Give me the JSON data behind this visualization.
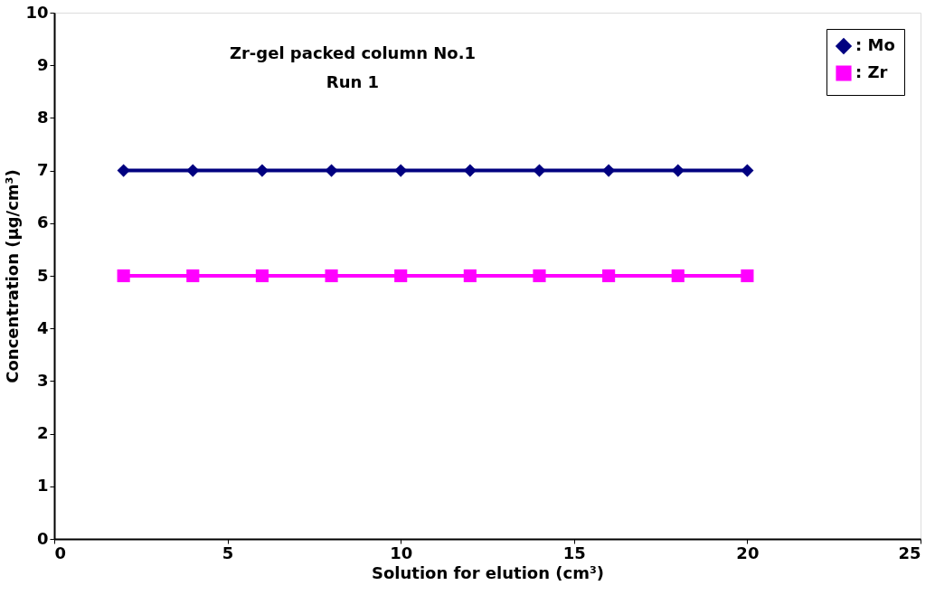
{
  "chart_data": {
    "type": "line",
    "title": "Zr-gel packed column No.1",
    "subtitle": "Run 1",
    "xlabel": "Solution for elution (cm³)",
    "ylabel": "Concentration (μg/cm³)",
    "x": [
      2,
      4,
      6,
      8,
      10,
      12,
      14,
      16,
      18,
      20
    ],
    "series": [
      {
        "name": ": Mo",
        "color": "#000080",
        "marker": "diamond",
        "values": [
          7,
          7,
          7,
          7,
          7,
          7,
          7,
          7,
          7,
          7
        ]
      },
      {
        "name": ": Zr",
        "color": "#ff00ff",
        "marker": "square",
        "values": [
          5,
          5,
          5,
          5,
          5,
          5,
          5,
          5,
          5,
          5
        ]
      }
    ],
    "xlim": [
      0,
      25
    ],
    "xticks": [
      0,
      5,
      10,
      15,
      20,
      25
    ],
    "ylim": [
      0,
      10
    ],
    "yticks": [
      0,
      1,
      2,
      3,
      4,
      5,
      6,
      7,
      8,
      9,
      10
    ],
    "grid": false,
    "legend": "top right",
    "line_style": "solid"
  }
}
